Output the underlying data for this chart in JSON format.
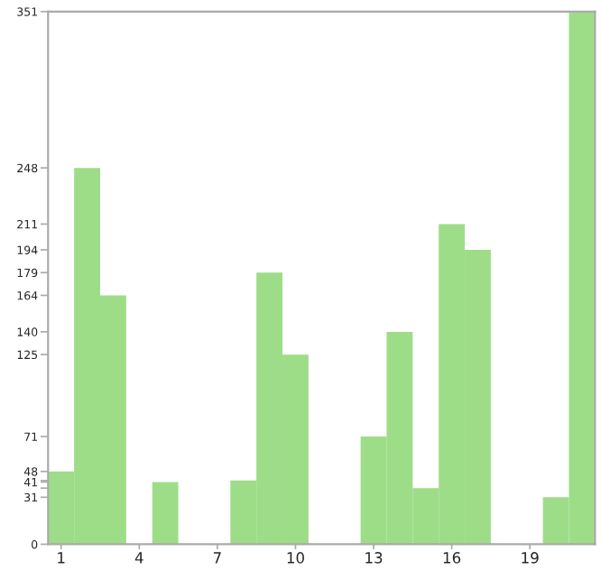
{
  "chart_data": {
    "type": "bar",
    "categories": [
      "1",
      null,
      null,
      "4",
      null,
      null,
      "7",
      null,
      null,
      "10",
      null,
      null,
      "13",
      null,
      null,
      "16",
      null,
      null,
      "19",
      null,
      null
    ],
    "values": [
      48,
      248,
      164,
      0,
      41,
      0,
      0,
      42,
      179,
      125,
      0,
      0,
      71,
      140,
      37,
      211,
      194,
      0,
      0,
      31,
      351
    ],
    "color": "#9edd88",
    "ylim": [
      0,
      351
    ],
    "yticks": [
      0,
      31,
      {
        "value": 37,
        "label": null
      },
      41,
      {
        "value": 42,
        "label": null
      },
      48,
      71,
      125,
      140,
      164,
      179,
      194,
      211,
      248,
      351
    ],
    "grid": false
  }
}
